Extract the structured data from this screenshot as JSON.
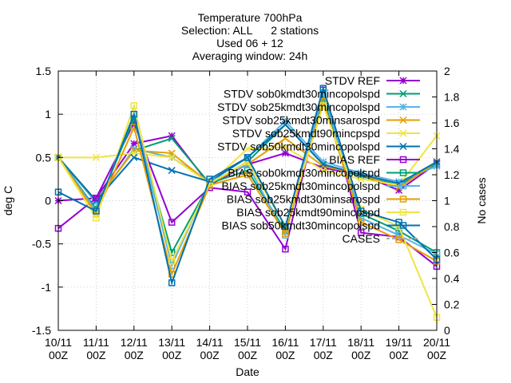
{
  "chart_data": {
    "type": "line",
    "title_lines": [
      "Temperature 700hPa",
      "Selection: ALL      2 stations",
      "Used 06 + 12",
      "Averaging window: 24h"
    ],
    "xlabel": "Date",
    "ylabel": "deg C",
    "y2label": "No cases",
    "ylim": [
      -1.5,
      1.5
    ],
    "y2lim": [
      0,
      2
    ],
    "yticks": [
      "-1.5",
      "-1",
      "-0.5",
      "0",
      "0.5",
      "1",
      "1.5"
    ],
    "y2ticks": [
      "0",
      "0.2",
      "0.4",
      "0.6",
      "0.8",
      "1",
      "1.2",
      "1.4",
      "1.6",
      "1.8",
      "2"
    ],
    "categories": [
      [
        "10/11",
        "00Z"
      ],
      [
        "11/11",
        "00Z"
      ],
      [
        "12/11",
        "00Z"
      ],
      [
        "13/11",
        "00Z"
      ],
      [
        "14/11",
        "00Z"
      ],
      [
        "15/11",
        "00Z"
      ],
      [
        "16/11",
        "00Z"
      ],
      [
        "17/11",
        "00Z"
      ],
      [
        "18/11",
        "00Z"
      ],
      [
        "19/11",
        "00Z"
      ],
      [
        "20/11",
        "00Z"
      ]
    ],
    "legend_position": "top-right",
    "series": [
      {
        "name": "STDV REF",
        "color": "#9400d3",
        "marker": "star",
        "axis": "y",
        "values": [
          0.0,
          0.03,
          0.66,
          0.75,
          0.18,
          0.42,
          0.55,
          0.38,
          0.3,
          0.12,
          0.43
        ]
      },
      {
        "name": "STDV sob0kmdt30mincopolspd",
        "color": "#009e73",
        "marker": "x",
        "axis": "y",
        "values": [
          0.5,
          0.0,
          0.58,
          0.72,
          0.2,
          0.45,
          0.88,
          0.42,
          0.28,
          0.18,
          0.42
        ]
      },
      {
        "name": "STDV sob25kmdt30mincopolspd",
        "color": "#56b4e9",
        "marker": "star",
        "axis": "y",
        "values": [
          0.5,
          -0.02,
          0.6,
          0.5,
          0.22,
          0.5,
          0.92,
          0.45,
          0.32,
          0.22,
          0.4
        ]
      },
      {
        "name": "STDV sob25kmdt30minsarospd",
        "color": "#e69f00",
        "marker": "x",
        "axis": "y",
        "values": [
          0.5,
          0.0,
          0.58,
          0.55,
          0.2,
          0.42,
          0.72,
          0.4,
          0.3,
          0.15,
          0.45
        ]
      },
      {
        "name": "STDV sob25kmdt90mincpspd",
        "color": "#f0e442",
        "marker": "x",
        "axis": "y",
        "values": [
          0.5,
          0.5,
          0.55,
          0.5,
          0.2,
          0.6,
          0.62,
          0.35,
          0.25,
          0.18,
          0.75
        ]
      },
      {
        "name": "STDV sob50kmdt30mincopolspd",
        "color": "#0072b2",
        "marker": "x",
        "axis": "y",
        "values": [
          0.5,
          0.0,
          0.5,
          0.35,
          0.22,
          0.5,
          0.88,
          0.42,
          0.3,
          0.2,
          0.45
        ]
      },
      {
        "name": "BIAS REF",
        "color": "#9400d3",
        "marker": "square",
        "axis": "y",
        "values": [
          -0.32,
          0.03,
          0.9,
          -0.25,
          0.15,
          0.1,
          -0.56,
          1.28,
          -0.37,
          -0.42,
          -0.76
        ]
      },
      {
        "name": "BIAS sob0kmdt30mincopolspd",
        "color": "#009e73",
        "marker": "square",
        "axis": "y",
        "values": [
          0.5,
          -0.1,
          0.95,
          -0.6,
          0.2,
          0.35,
          -0.35,
          1.2,
          -0.15,
          -0.35,
          -0.6
        ]
      },
      {
        "name": "BIAS sob25kmdt30mincopolspd",
        "color": "#56b4e9",
        "marker": "square",
        "axis": "y",
        "values": [
          0.5,
          -0.12,
          1.0,
          -0.75,
          0.22,
          0.42,
          -0.4,
          1.25,
          -0.2,
          -0.4,
          -0.62
        ]
      },
      {
        "name": "BIAS sob25kmdt30minsarospd",
        "color": "#e69f00",
        "marker": "square",
        "axis": "y",
        "values": [
          0.5,
          -0.15,
          0.85,
          -0.85,
          0.18,
          0.3,
          -0.38,
          1.15,
          -0.25,
          -0.45,
          -0.7
        ]
      },
      {
        "name": "BIAS sob25kmdt90mincpspd",
        "color": "#f0e442",
        "marker": "square",
        "axis": "y",
        "values": [
          0.5,
          -0.2,
          1.1,
          -0.7,
          0.2,
          0.45,
          -0.3,
          1.1,
          -0.1,
          -0.3,
          -1.35
        ]
      },
      {
        "name": "BIAS sob50kmdt30mincopolspd",
        "color": "#0072b2",
        "marker": "square",
        "axis": "y",
        "values": [
          0.1,
          -0.12,
          1.0,
          -0.95,
          0.25,
          0.5,
          -0.3,
          1.3,
          -0.12,
          -0.25,
          -0.68
        ]
      },
      {
        "name": "CASES",
        "color": "#aaaaaa",
        "marker": "none",
        "dashed": true,
        "axis": "y2",
        "legend_only": true,
        "values": [
          2,
          2,
          2,
          2,
          2,
          2,
          2,
          2,
          2,
          2,
          2
        ]
      }
    ]
  }
}
